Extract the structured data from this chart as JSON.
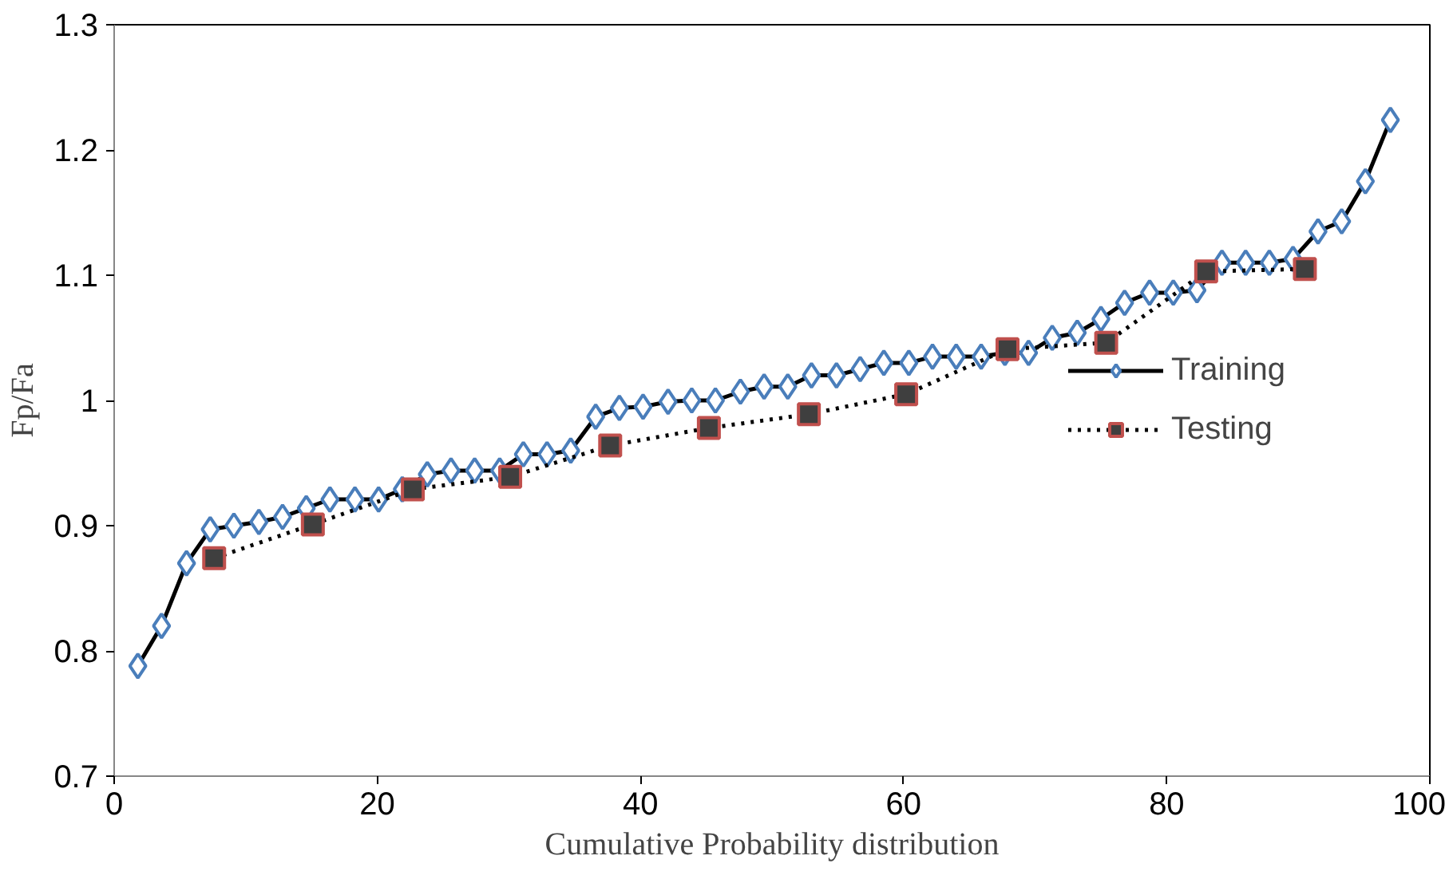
{
  "chart_data": {
    "type": "line",
    "xlabel": "Cumulative Probability distribution",
    "ylabel": "Fp/Fa",
    "xlim": [
      0,
      100
    ],
    "xticks": [
      0,
      20,
      40,
      60,
      80,
      100
    ],
    "ylim": [
      0.7,
      1.3
    ],
    "yticks": [
      0.7,
      0.8,
      0.9,
      {
        "value": 1,
        "label": "1"
      },
      1.1,
      1.2,
      1.3
    ],
    "grid": false,
    "legend": "right",
    "series": [
      {
        "name": "Training",
        "color": "#000000",
        "marker": "diamond",
        "line_style": "solid",
        "x": [
          1.8,
          3.6,
          5.5,
          7.3,
          9.1,
          11.0,
          12.8,
          14.6,
          16.4,
          18.3,
          20.1,
          21.9,
          23.8,
          25.6,
          27.4,
          29.3,
          31.1,
          32.9,
          34.7,
          36.6,
          38.4,
          40.2,
          42.1,
          43.9,
          45.7,
          47.6,
          49.4,
          51.2,
          53.0,
          54.9,
          56.7,
          58.5,
          60.4,
          62.2,
          64.0,
          65.9,
          67.7,
          69.5,
          71.3,
          73.2,
          75.0,
          76.8,
          78.7,
          80.5,
          82.3,
          84.2,
          86.0,
          87.8,
          89.6,
          91.5,
          93.3,
          95.1,
          97.0
        ],
        "values": [
          0.788,
          0.82,
          0.87,
          0.897,
          0.9,
          0.903,
          0.907,
          0.914,
          0.921,
          0.921,
          0.921,
          0.929,
          0.941,
          0.944,
          0.944,
          0.944,
          0.957,
          0.957,
          0.96,
          0.987,
          0.994,
          0.995,
          0.999,
          1.0,
          1.0,
          1.007,
          1.011,
          1.011,
          1.02,
          1.02,
          1.025,
          1.03,
          1.03,
          1.035,
          1.035,
          1.035,
          1.038,
          1.038,
          1.05,
          1.054,
          1.065,
          1.078,
          1.086,
          1.086,
          1.088,
          1.11,
          1.11,
          1.11,
          1.113,
          1.135,
          1.143,
          1.175,
          1.224
        ]
      },
      {
        "name": "Testing",
        "color": "#000000",
        "marker": "square",
        "line_style": "dotted",
        "x": [
          7.6,
          15.1,
          22.7,
          30.1,
          37.7,
          45.2,
          52.8,
          60.2,
          67.9,
          75.4,
          83.0,
          90.5
        ],
        "values": [
          0.874,
          0.901,
          0.929,
          0.939,
          0.964,
          0.978,
          0.989,
          1.005,
          1.041,
          1.046,
          1.103,
          1.105
        ]
      }
    ]
  }
}
